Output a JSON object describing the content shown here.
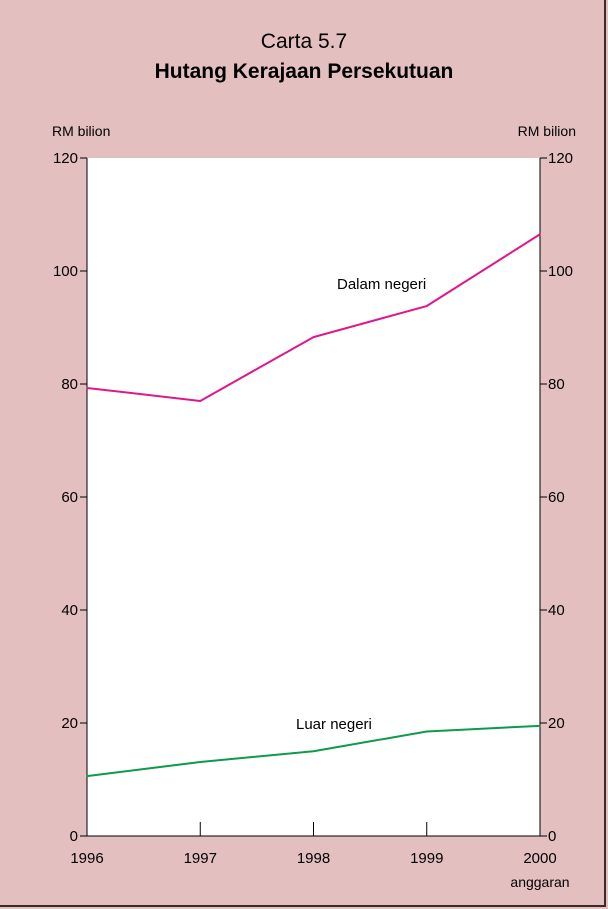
{
  "title_line1": "Carta 5.7",
  "title_line2": "Hutang Kerajaan Persekutuan",
  "chart_data": {
    "type": "line",
    "x": [
      "1996",
      "1997",
      "1998",
      "1999",
      "2000"
    ],
    "x_sublabels": [
      "",
      "",
      "",
      "",
      "anggaran"
    ],
    "ylabel_left": "RM bilion",
    "ylabel_right": "RM bilion",
    "ylim": [
      0,
      120
    ],
    "yticks": [
      0,
      20,
      40,
      60,
      80,
      100,
      120
    ],
    "grid": false,
    "series": [
      {
        "name": "Dalam negeri",
        "color": "#e0168c",
        "values": [
          79.3,
          77.0,
          88.3,
          93.8,
          106.5
        ]
      },
      {
        "name": "Luar negeri",
        "color": "#0d9a4a",
        "values": [
          10.6,
          13.1,
          15.0,
          18.5,
          19.5
        ]
      }
    ]
  }
}
